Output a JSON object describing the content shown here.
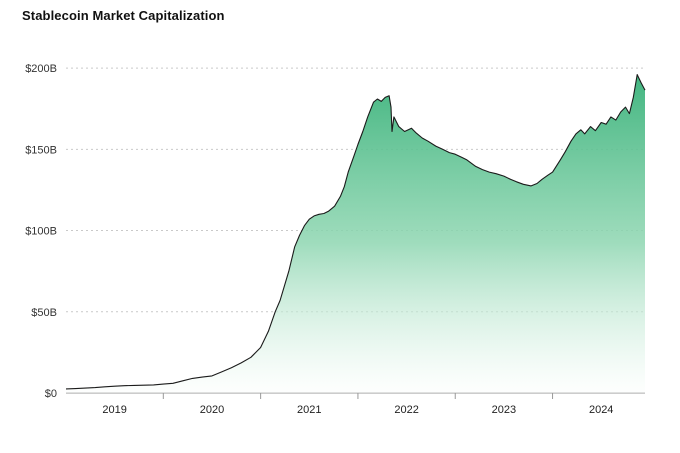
{
  "title": "Stablecoin Market Capitalization",
  "colors": {
    "background": "#ffffff",
    "line": "#1b1b1b",
    "grid": "#c9c9c9",
    "axis": "#999999",
    "tick_text": "#333333",
    "area_gradient_top": "#30ae74",
    "area_gradient_mid": "#8ed6b1",
    "area_gradient_bottom": "#fbfefc"
  },
  "chart_data": {
    "type": "area",
    "title": "Stablecoin Market Capitalization",
    "xlabel": "",
    "ylabel": "",
    "legend": "none",
    "grid": "horizontal-dotted",
    "xlim": [
      2019,
      2024.95
    ],
    "ylim": [
      0,
      205
    ],
    "x_tick_years": [
      2019,
      2020,
      2021,
      2022,
      2023,
      2024
    ],
    "x_tick_labels": [
      "2019",
      "2020",
      "2021",
      "2022",
      "2023",
      "2024"
    ],
    "y_ticks": [
      0,
      50,
      100,
      150,
      200
    ],
    "y_tick_labels": [
      "$0",
      "$50B",
      "$100B",
      "$150B",
      "$200B"
    ],
    "series": [
      {
        "name": "Stablecoin market capitalization ($B)",
        "points": [
          [
            2019.0,
            2.5
          ],
          [
            2019.1,
            2.7
          ],
          [
            2019.2,
            3.0
          ],
          [
            2019.3,
            3.3
          ],
          [
            2019.4,
            3.8
          ],
          [
            2019.5,
            4.2
          ],
          [
            2019.6,
            4.5
          ],
          [
            2019.7,
            4.7
          ],
          [
            2019.8,
            4.8
          ],
          [
            2019.9,
            5.0
          ],
          [
            2020.0,
            5.5
          ],
          [
            2020.1,
            6.0
          ],
          [
            2020.2,
            7.5
          ],
          [
            2020.3,
            9.0
          ],
          [
            2020.4,
            9.8
          ],
          [
            2020.5,
            10.5
          ],
          [
            2020.6,
            13.0
          ],
          [
            2020.7,
            15.5
          ],
          [
            2020.8,
            18.5
          ],
          [
            2020.9,
            22.0
          ],
          [
            2020.95,
            25.0
          ],
          [
            2021.0,
            28.0
          ],
          [
            2021.08,
            38.0
          ],
          [
            2021.15,
            50.0
          ],
          [
            2021.2,
            57.0
          ],
          [
            2021.29,
            75.0
          ],
          [
            2021.35,
            90.0
          ],
          [
            2021.4,
            97.0
          ],
          [
            2021.45,
            103.0
          ],
          [
            2021.5,
            107.0
          ],
          [
            2021.55,
            109.0
          ],
          [
            2021.6,
            110.0
          ],
          [
            2021.65,
            110.5
          ],
          [
            2021.7,
            112.0
          ],
          [
            2021.76,
            115.0
          ],
          [
            2021.82,
            121.0
          ],
          [
            2021.86,
            127.0
          ],
          [
            2021.9,
            136.0
          ],
          [
            2021.96,
            146.0
          ],
          [
            2022.0,
            153.0
          ],
          [
            2022.05,
            161.0
          ],
          [
            2022.1,
            170.0
          ],
          [
            2022.16,
            179.0
          ],
          [
            2022.2,
            181.0
          ],
          [
            2022.24,
            179.5
          ],
          [
            2022.28,
            182.0
          ],
          [
            2022.32,
            183.0
          ],
          [
            2022.34,
            176.0
          ],
          [
            2022.35,
            161.0
          ],
          [
            2022.37,
            170.0
          ],
          [
            2022.42,
            164.0
          ],
          [
            2022.48,
            161.0
          ],
          [
            2022.55,
            163.0
          ],
          [
            2022.6,
            160.0
          ],
          [
            2022.66,
            157.0
          ],
          [
            2022.72,
            155.0
          ],
          [
            2022.8,
            152.0
          ],
          [
            2022.87,
            150.0
          ],
          [
            2022.94,
            148.0
          ],
          [
            2023.0,
            147.0
          ],
          [
            2023.07,
            145.0
          ],
          [
            2023.12,
            143.5
          ],
          [
            2023.21,
            139.5
          ],
          [
            2023.28,
            137.5
          ],
          [
            2023.35,
            136.0
          ],
          [
            2023.42,
            135.0
          ],
          [
            2023.5,
            133.5
          ],
          [
            2023.57,
            131.5
          ],
          [
            2023.63,
            130.0
          ],
          [
            2023.7,
            128.5
          ],
          [
            2023.78,
            127.5
          ],
          [
            2023.84,
            129.0
          ],
          [
            2023.89,
            131.5
          ],
          [
            2023.95,
            134.0
          ],
          [
            2024.0,
            136.0
          ],
          [
            2024.08,
            143.5
          ],
          [
            2024.13,
            148.5
          ],
          [
            2024.19,
            155.0
          ],
          [
            2024.24,
            159.5
          ],
          [
            2024.29,
            162.0
          ],
          [
            2024.33,
            159.5
          ],
          [
            2024.39,
            164.0
          ],
          [
            2024.44,
            161.5
          ],
          [
            2024.5,
            166.5
          ],
          [
            2024.55,
            165.5
          ],
          [
            2024.6,
            170.0
          ],
          [
            2024.65,
            168.0
          ],
          [
            2024.7,
            173.0
          ],
          [
            2024.75,
            176.0
          ],
          [
            2024.79,
            172.0
          ],
          [
            2024.83,
            182.0
          ],
          [
            2024.87,
            196.0
          ],
          [
            2024.91,
            191.0
          ],
          [
            2024.95,
            186.5
          ]
        ]
      }
    ]
  }
}
